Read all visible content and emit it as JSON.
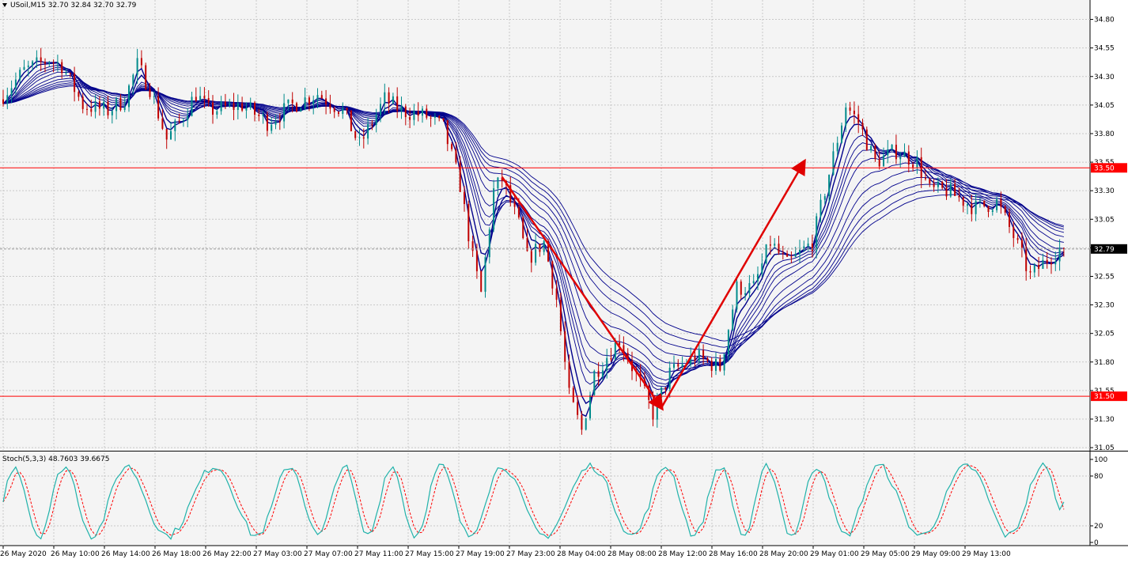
{
  "header": {
    "main_title": "USoil,M15  32.70 32.84 32.70 32.79",
    "stoch_title": "Stoch(5,3,3) 48.7603 39.6675"
  },
  "colors": {
    "background": "#ffffff",
    "plot_bg": "#f4f4f4",
    "grid": "#c8c8c8",
    "bull_candle": "#008b8b",
    "bear_candle": "#c00000",
    "ma_ribbon": "#00008b",
    "level_line": "#ff0000",
    "level_label_bg": "#ff0000",
    "current_price_label_bg": "#000000",
    "stoch_main": "#20b2aa",
    "stoch_signal": "#ff0000",
    "arrow": "#e00000"
  },
  "chart_data": {
    "type": "candlestick",
    "symbol": "USoil",
    "timeframe": "M15",
    "ohlc_last": {
      "open": 32.7,
      "high": 32.84,
      "low": 32.7,
      "close": 32.79
    },
    "y_ticks": [
      "34.80",
      "34.55",
      "34.30",
      "34.05",
      "33.80",
      "33.55",
      "33.30",
      "33.05",
      "32.80",
      "32.55",
      "32.30",
      "32.05",
      "31.80",
      "31.55",
      "31.30",
      "31.05"
    ],
    "ylim": [
      31.03,
      34.97
    ],
    "x_ticks": [
      "26 May 2020",
      "26 May 10:00",
      "26 May 14:00",
      "26 May 18:00",
      "26 May 22:00",
      "27 May 03:00",
      "27 May 07:00",
      "27 May 11:00",
      "27 May 15:00",
      "27 May 19:00",
      "27 May 23:00",
      "28 May 04:00",
      "28 May 08:00",
      "28 May 12:00",
      "28 May 16:00",
      "28 May 20:00",
      "29 May 01:00",
      "29 May 05:00",
      "29 May 09:00",
      "29 May 13:00"
    ],
    "horizontal_levels": [
      {
        "value": 33.5,
        "label": "33.50"
      },
      {
        "value": 31.5,
        "label": "31.50"
      }
    ],
    "current_price": {
      "value": 32.79,
      "label": "32.79"
    },
    "price_path": [
      {
        "t": 0,
        "p": 34.1
      },
      {
        "t": 6,
        "p": 34.35
      },
      {
        "t": 12,
        "p": 34.45
      },
      {
        "t": 15,
        "p": 34.4
      },
      {
        "t": 20,
        "p": 34.05
      },
      {
        "t": 26,
        "p": 34.0
      },
      {
        "t": 30,
        "p": 34.1
      },
      {
        "t": 33,
        "p": 34.4
      },
      {
        "t": 36,
        "p": 34.2
      },
      {
        "t": 40,
        "p": 33.75
      },
      {
        "t": 43,
        "p": 33.9
      },
      {
        "t": 47,
        "p": 34.15
      },
      {
        "t": 50,
        "p": 34.0
      },
      {
        "t": 58,
        "p": 34.05
      },
      {
        "t": 64,
        "p": 33.9
      },
      {
        "t": 70,
        "p": 34.05
      },
      {
        "t": 76,
        "p": 34.15
      },
      {
        "t": 82,
        "p": 34.0
      },
      {
        "t": 86,
        "p": 33.7
      },
      {
        "t": 92,
        "p": 34.1
      },
      {
        "t": 96,
        "p": 34.0
      },
      {
        "t": 102,
        "p": 33.95
      },
      {
        "t": 106,
        "p": 33.85
      },
      {
        "t": 110,
        "p": 33.35
      },
      {
        "t": 113,
        "p": 32.7
      },
      {
        "t": 115,
        "p": 32.4
      },
      {
        "t": 118,
        "p": 33.3
      },
      {
        "t": 120,
        "p": 33.4
      },
      {
        "t": 124,
        "p": 33.0
      },
      {
        "t": 126,
        "p": 32.7
      },
      {
        "t": 130,
        "p": 32.85
      },
      {
        "t": 133,
        "p": 32.35
      },
      {
        "t": 136,
        "p": 31.5
      },
      {
        "t": 139,
        "p": 31.2
      },
      {
        "t": 142,
        "p": 31.7
      },
      {
        "t": 148,
        "p": 32.0
      },
      {
        "t": 153,
        "p": 31.6
      },
      {
        "t": 156,
        "p": 31.35
      },
      {
        "t": 160,
        "p": 31.7
      },
      {
        "t": 166,
        "p": 31.85
      },
      {
        "t": 172,
        "p": 31.75
      },
      {
        "t": 176,
        "p": 32.45
      },
      {
        "t": 180,
        "p": 32.45
      },
      {
        "t": 184,
        "p": 32.85
      },
      {
        "t": 188,
        "p": 32.65
      },
      {
        "t": 194,
        "p": 32.85
      },
      {
        "t": 198,
        "p": 33.45
      },
      {
        "t": 202,
        "p": 34.05
      },
      {
        "t": 205,
        "p": 33.9
      },
      {
        "t": 209,
        "p": 33.55
      },
      {
        "t": 214,
        "p": 33.65
      },
      {
        "t": 219,
        "p": 33.55
      },
      {
        "t": 222,
        "p": 33.3
      },
      {
        "t": 226,
        "p": 33.3
      },
      {
        "t": 233,
        "p": 33.15
      },
      {
        "t": 238,
        "p": 33.2
      },
      {
        "t": 242,
        "p": 32.9
      },
      {
        "t": 246,
        "p": 32.55
      },
      {
        "t": 250,
        "p": 32.7
      },
      {
        "t": 253,
        "p": 32.79
      }
    ],
    "annotation_arrows": [
      {
        "from": {
          "t": 119,
          "p": 33.42
        },
        "to": {
          "t": 157,
          "p": 31.4
        }
      },
      {
        "from": {
          "t": 157,
          "p": 31.4
        },
        "to": {
          "t": 191,
          "p": 33.55
        }
      }
    ],
    "stochastic": {
      "title": "Stoch(5,3,3)",
      "main": 48.7603,
      "signal": 39.6675,
      "levels": [
        20,
        80
      ],
      "y_ticks": [
        "100",
        "80",
        "20",
        "0"
      ],
      "ylim": [
        0,
        100
      ]
    }
  }
}
